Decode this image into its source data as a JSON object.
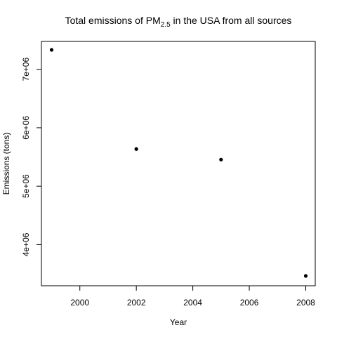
{
  "chart_data": {
    "type": "scatter",
    "title": {
      "prefix": "Total emissions of PM",
      "subscript": "2.5",
      "suffix": " in the USA from all sources"
    },
    "xlabel": "Year",
    "ylabel": "Emissions (tons)",
    "x": [
      1999,
      2002,
      2005,
      2008
    ],
    "y": [
      7332967,
      5635780,
      5454703,
      3464206
    ],
    "xlim": [
      1999,
      2008
    ],
    "ylim": [
      3464206,
      7332967
    ],
    "xticks": [
      2000,
      2002,
      2004,
      2006,
      2008
    ],
    "xtick_labels": [
      "2000",
      "2002",
      "2004",
      "2006",
      "2008"
    ],
    "yticks": [
      4000000,
      5000000,
      6000000,
      7000000
    ],
    "ytick_labels": [
      "4e+06",
      "5e+06",
      "6e+06",
      "7e+06"
    ],
    "grid": false,
    "marker_color": "#000000"
  }
}
